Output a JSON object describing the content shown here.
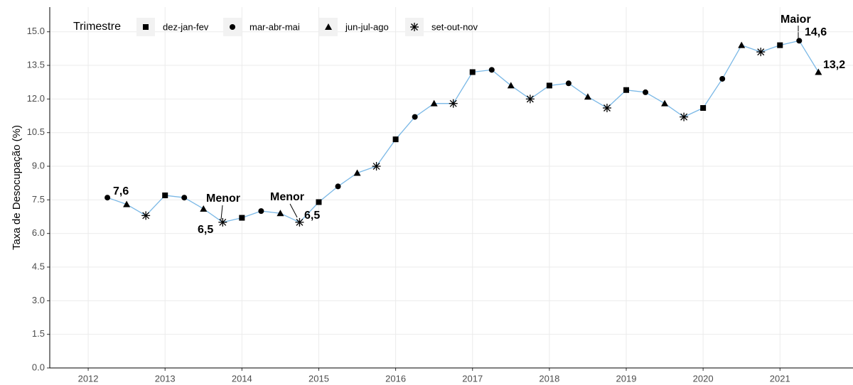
{
  "chart_data": {
    "type": "line",
    "y_label": "Taxa de Desocupação (%)",
    "legend_title": "Trimestre",
    "line_color": "#7ab8e6",
    "marker_color": "#000000",
    "grid": true,
    "xlim": [
      2011.5,
      2021.95
    ],
    "xticks": [
      2012,
      2013,
      2014,
      2015,
      2016,
      2017,
      2018,
      2019,
      2020,
      2021
    ],
    "ylim": [
      0,
      16.1
    ],
    "yticks": [
      {
        "value": 0,
        "label": "0.0"
      },
      1.5,
      {
        "value": 3,
        "label": "3.0"
      },
      4.5,
      {
        "value": 6,
        "label": "6.0"
      },
      7.5,
      {
        "value": 9,
        "label": "9.0"
      },
      10.5,
      {
        "value": 12,
        "label": "12.0"
      },
      13.5,
      {
        "value": 15,
        "label": "15.0"
      }
    ],
    "series": [
      {
        "name": "dez-jan-fev",
        "marker": "square",
        "x": [
          2013,
          2014,
          2015,
          2016,
          2017,
          2018,
          2019,
          2020,
          2021
        ],
        "values": [
          7.7,
          6.7,
          7.4,
          10.2,
          13.2,
          12.6,
          12.4,
          11.6,
          14.4
        ]
      },
      {
        "name": "mar-abr-mai",
        "marker": "circle",
        "x": [
          2012.25,
          2013.25,
          2014.25,
          2015.25,
          2016.25,
          2017.25,
          2018.25,
          2019.25,
          2020.25,
          2021.25
        ],
        "values": [
          7.6,
          7.6,
          7.0,
          8.1,
          11.2,
          13.3,
          12.7,
          12.3,
          12.9,
          14.6
        ]
      },
      {
        "name": "jun-jul-ago",
        "marker": "triangle",
        "x": [
          2012.5,
          2013.5,
          2014.5,
          2015.5,
          2016.5,
          2017.5,
          2018.5,
          2019.5,
          2020.5,
          2021.5
        ],
        "values": [
          7.3,
          7.1,
          6.9,
          8.7,
          11.8,
          12.6,
          12.1,
          11.8,
          14.4,
          13.2
        ]
      },
      {
        "name": "set-out-nov",
        "marker": "star",
        "x": [
          2012.75,
          2013.75,
          2014.75,
          2015.75,
          2016.75,
          2017.75,
          2018.75,
          2019.75,
          2020.75
        ],
        "values": [
          6.8,
          6.5,
          6.5,
          9.0,
          11.8,
          12.0,
          11.6,
          11.2,
          14.1
        ]
      }
    ],
    "annotations": [
      "7,6",
      "Menor",
      "6,5",
      "Menor",
      "6,5",
      "Maior",
      "14,6",
      "13,2"
    ]
  }
}
